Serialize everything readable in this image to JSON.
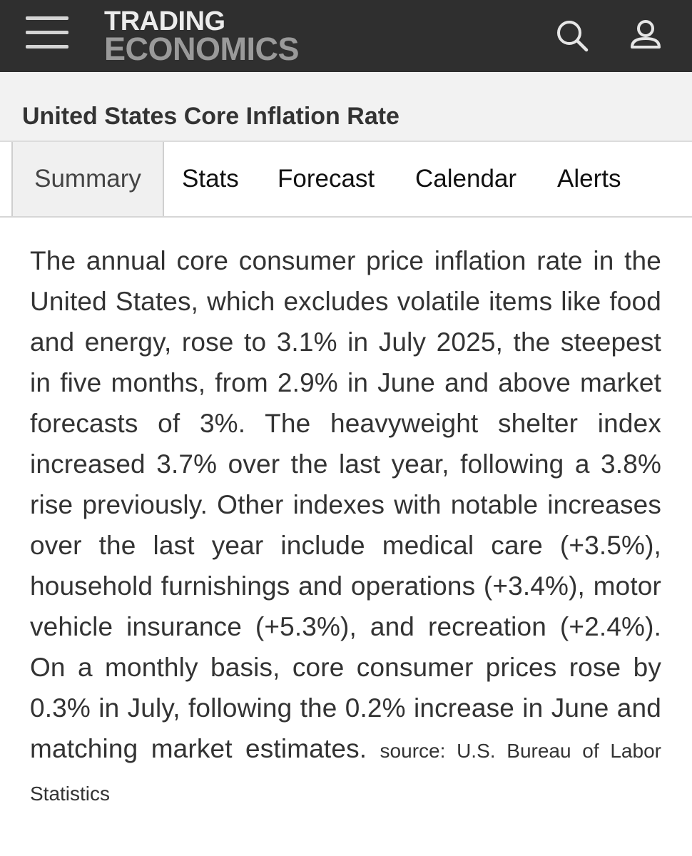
{
  "header": {
    "logo_line1": "TRADING",
    "logo_line2": "ECONOMICS",
    "menu_icon": "hamburger-menu-icon",
    "search_icon": "search-icon",
    "user_icon": "user-icon",
    "background_color": "#2f2f2f"
  },
  "page": {
    "title": "United States Core Inflation Rate"
  },
  "tabs": [
    {
      "label": "Summary",
      "active": true
    },
    {
      "label": "Stats",
      "active": false
    },
    {
      "label": "Forecast",
      "active": false
    },
    {
      "label": "Calendar",
      "active": false
    },
    {
      "label": "Alerts",
      "active": false
    }
  ],
  "summary": {
    "text": "The annual core consumer price inflation rate in the United States, which excludes volatile items like food and energy, rose to 3.1% in July 2025, the steepest in five months, from 2.9% in June and above market forecasts of 3%. The heavyweight shelter index increased 3.7% over the last year, following a 3.8% rise previously. Other indexes with notable increases over the last year include medical care (+3.5%), household furnishings and operations (+3.4%), motor vehicle insurance (+5.3%), and recreation (+2.4%). On a monthly basis, core consumer prices rose by 0.3% in July, following the 0.2% increase in June and matching market estimates.",
    "source": "source: U.S. Bureau of Labor Statistics"
  }
}
